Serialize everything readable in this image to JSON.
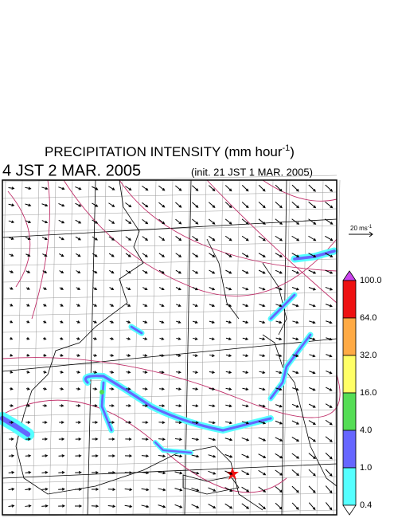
{
  "header": {
    "title": {
      "text": "PRECIPITATION INTENSITY (mm hour",
      "sup": "-1",
      "end": ")"
    },
    "valid_time": "4 JST 2 MAR. 2005",
    "init_time": "(init. 21 JST 1 MAR. 2005)"
  },
  "wind_scale": {
    "text": "20 ms",
    "sup": "-1"
  },
  "colorbar": {
    "labels": [
      "100.0",
      "64.0",
      "32.0",
      "16.0",
      "4.0",
      "1.0",
      "0.4"
    ],
    "colors": [
      "#cc44ee",
      "#ee1111",
      "#ffaa44",
      "#ffff66",
      "#55dd55",
      "#6666ff",
      "#55ffff",
      "#ffffff"
    ]
  }
}
